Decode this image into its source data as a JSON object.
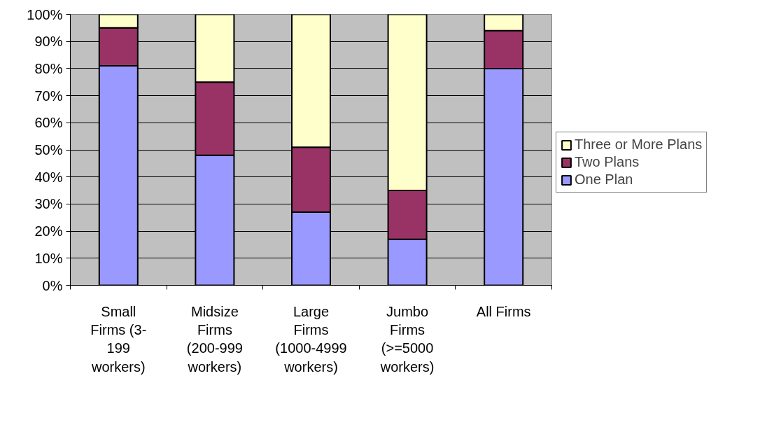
{
  "chart_data": {
    "type": "bar",
    "stacked": true,
    "categories": [
      "Small Firms (3-199 workers)",
      "Midsize Firms (200-999 workers)",
      "Large Firms (1000-4999 workers)",
      "Jumbo Firms (>=5000 workers)",
      "All Firms"
    ],
    "series": [
      {
        "name": "One Plan",
        "color": "#9999ff",
        "values": [
          81,
          48,
          27,
          17,
          80
        ]
      },
      {
        "name": "Two Plans",
        "color": "#993366",
        "values": [
          14,
          27,
          24,
          18,
          14
        ]
      },
      {
        "name": "Three or More Plans",
        "color": "#ffffcc",
        "values": [
          5,
          25,
          49,
          65,
          6
        ]
      }
    ],
    "ylim": [
      0,
      100
    ],
    "yticks": [
      {
        "value": 0,
        "label": "0%"
      },
      {
        "value": 10,
        "label": "10%"
      },
      {
        "value": 20,
        "label": "20%"
      },
      {
        "value": 30,
        "label": "30%"
      },
      {
        "value": 40,
        "label": "40%"
      },
      {
        "value": 50,
        "label": "50%"
      },
      {
        "value": 60,
        "label": "60%"
      },
      {
        "value": 70,
        "label": "70%"
      },
      {
        "value": 80,
        "label": "80%"
      },
      {
        "value": 90,
        "label": "90%"
      },
      {
        "value": 100,
        "label": "100%"
      }
    ],
    "grid": "y",
    "legend": "right"
  }
}
